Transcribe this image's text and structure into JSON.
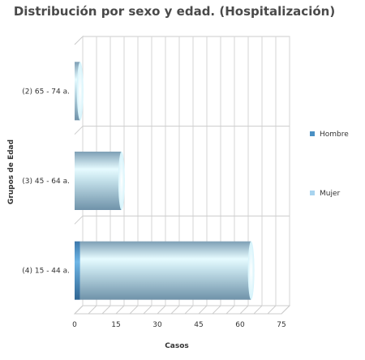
{
  "chart_data": {
    "type": "bar",
    "orientation": "horizontal",
    "stacked": true,
    "title": "Distribución por sexo y edad. (Hospitalización)",
    "xlabel": "Casos",
    "ylabel": "Grupos de Edad",
    "categories": [
      "(2) 65 - 74 a.",
      "(3) 45 - 64 a.",
      "(4) 15 - 44 a."
    ],
    "series": [
      {
        "name": "Hombre",
        "color": "#4a90c4",
        "values": [
          0,
          0,
          2
        ]
      },
      {
        "name": "Mujer",
        "color": "#a8d4ef",
        "values": [
          2,
          17,
          62
        ]
      }
    ],
    "xlim": [
      0,
      75
    ],
    "xticks": [
      0,
      15,
      30,
      45,
      60,
      75
    ],
    "grid": true,
    "legend_position": "right"
  }
}
